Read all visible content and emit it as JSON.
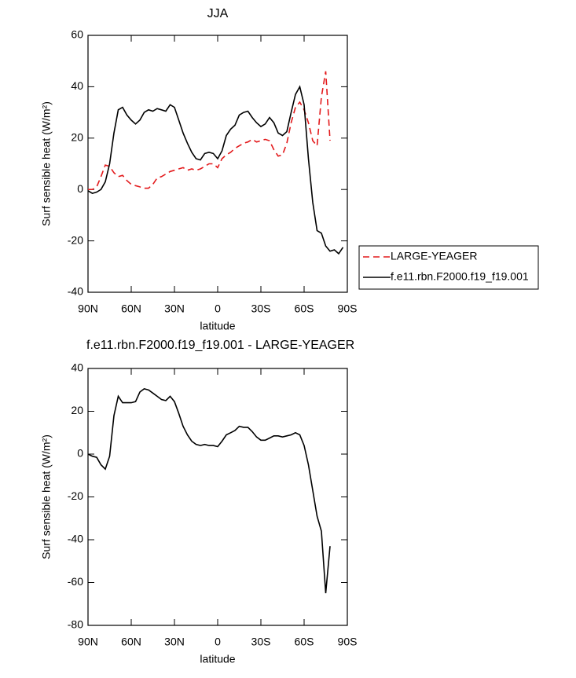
{
  "chart_data": [
    {
      "type": "line",
      "title": "JJA",
      "x_label": "latitude",
      "y_label": "Surf sensible heat (W/m²)",
      "x": [
        90,
        87,
        84,
        81,
        78,
        75,
        72,
        69,
        66,
        63,
        60,
        57,
        54,
        51,
        48,
        45,
        42,
        39,
        36,
        33,
        30,
        27,
        24,
        21,
        18,
        15,
        12,
        9,
        6,
        3,
        0,
        -3,
        -6,
        -9,
        -12,
        -15,
        -18,
        -21,
        -24,
        -27,
        -30,
        -33,
        -36,
        -39,
        -42,
        -45,
        -48,
        -51,
        -54,
        -57,
        -60,
        -63,
        -66,
        -69,
        -72,
        -75,
        -78,
        -81,
        -84,
        -87
      ],
      "xlim": [
        90,
        -90
      ],
      "xticks": [
        {
          "value": 90,
          "label": "90N"
        },
        {
          "value": 60,
          "label": "60N"
        },
        {
          "value": 30,
          "label": "30N"
        },
        0,
        {
          "value": -30,
          "label": "30S"
        },
        {
          "value": -60,
          "label": "60S"
        },
        {
          "value": -90,
          "label": "90S"
        }
      ],
      "ylim": [
        -40,
        60
      ],
      "yticks": [
        60,
        40,
        20,
        0,
        -20,
        -40
      ],
      "legend": "lower right",
      "series": [
        {
          "name": "LARGE-YEAGER",
          "color": "#e31a1c",
          "line_style": "dashed",
          "values": [
            0,
            0,
            1,
            5,
            9.5,
            9,
            6.5,
            5,
            5.5,
            3.5,
            2,
            1.5,
            1,
            0.5,
            0.5,
            2,
            4.5,
            5,
            6,
            7,
            7.5,
            8,
            8.5,
            7.5,
            8,
            7.5,
            8,
            9,
            10,
            10,
            8.5,
            12,
            13.5,
            14.5,
            16,
            17,
            18,
            18.5,
            19.5,
            18.5,
            19,
            19.5,
            19,
            15.5,
            13,
            13.5,
            18,
            26,
            32,
            34,
            31,
            26,
            19,
            17,
            36,
            46,
            19,
            null,
            null,
            null
          ]
        },
        {
          "name": "f.e11.rbn.F2000.f19_f19.001",
          "color": "#000000",
          "line_style": "solid",
          "values": [
            -0.5,
            -1.5,
            -1,
            0,
            3,
            10,
            22,
            31,
            32,
            29,
            27,
            25.5,
            27,
            30,
            31,
            30.5,
            31.5,
            31,
            30.5,
            33,
            32,
            27,
            22,
            18,
            14.5,
            12,
            11.5,
            14,
            14.5,
            14,
            12,
            15,
            21,
            23.5,
            25,
            29,
            30,
            30.5,
            28,
            26,
            24.5,
            25.5,
            28,
            26,
            22,
            21,
            22.5,
            30,
            37,
            40,
            33,
            12,
            -5,
            -16,
            -17,
            -22,
            -24,
            -23.5,
            -25,
            -22.5
          ]
        }
      ]
    },
    {
      "type": "line",
      "title": "f.e11.rbn.F2000.f19_f19.001 - LARGE-YEAGER",
      "x_label": "latitude",
      "y_label": "Surf sensible heat (W/m²)",
      "x": [
        90,
        87,
        84,
        81,
        78,
        75,
        72,
        69,
        66,
        63,
        60,
        57,
        54,
        51,
        48,
        45,
        42,
        39,
        36,
        33,
        30,
        27,
        24,
        21,
        18,
        15,
        12,
        9,
        6,
        3,
        0,
        -3,
        -6,
        -9,
        -12,
        -15,
        -18,
        -21,
        -24,
        -27,
        -30,
        -33,
        -36,
        -39,
        -42,
        -45,
        -48,
        -51,
        -54,
        -57,
        -60,
        -63,
        -66,
        -69,
        -72,
        -75,
        -78,
        -81,
        -84,
        -87
      ],
      "xlim": [
        90,
        -90
      ],
      "xticks": [
        {
          "value": 90,
          "label": "90N"
        },
        {
          "value": 60,
          "label": "60N"
        },
        {
          "value": 30,
          "label": "30N"
        },
        0,
        {
          "value": -30,
          "label": "30S"
        },
        {
          "value": -60,
          "label": "60S"
        },
        {
          "value": -90,
          "label": "90S"
        }
      ],
      "ylim": [
        -80,
        40
      ],
      "yticks": [
        40,
        20,
        0,
        -20,
        -40,
        -60,
        -80
      ],
      "series": [
        {
          "color": "#000000",
          "line_style": "solid",
          "values": [
            0,
            -1,
            -1.5,
            -5,
            -7,
            -1,
            18,
            27,
            24,
            24,
            24,
            24.5,
            29,
            30.5,
            30,
            28.5,
            27,
            25.5,
            25,
            27,
            24.5,
            19,
            13,
            9,
            6,
            4.5,
            4,
            4.5,
            4,
            4,
            3.5,
            6,
            9,
            10,
            11,
            13,
            12.5,
            12.5,
            10.5,
            8,
            6.5,
            6.5,
            7.5,
            8.5,
            8.5,
            8,
            8.5,
            9,
            10,
            9,
            4,
            -5,
            -17,
            -29,
            -36,
            -65,
            -43,
            null,
            null,
            null
          ]
        }
      ]
    }
  ]
}
